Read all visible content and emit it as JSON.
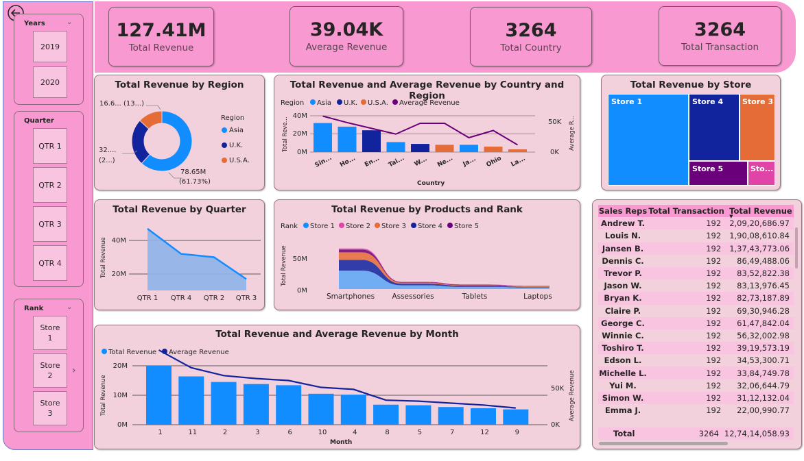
{
  "kpis": [
    {
      "value": "127.41M",
      "label": "Total Revenue"
    },
    {
      "value": "39.04K",
      "label": "Average Revenue"
    },
    {
      "value": "3264",
      "label": "Total Country"
    },
    {
      "value": "3264",
      "label": "Total Transaction"
    }
  ],
  "slicers": {
    "years": {
      "title": "Years",
      "items": [
        "2019",
        "2020"
      ]
    },
    "quarter": {
      "title": "Quarter",
      "items": [
        "QTR 1",
        "QTR 2",
        "QTR 3",
        "QTR 4"
      ]
    },
    "rank": {
      "title": "Rank",
      "items": [
        "Store 1",
        "Store 2",
        "Store 3"
      ]
    }
  },
  "colors": {
    "pink": "#f999d2",
    "card": "#f2d0dc",
    "asia": "#118dff",
    "uk": "#12239e",
    "usa": "#e66c37",
    "avg": "#6b007b",
    "store5": "#6b007b",
    "store6": "#e044a7"
  },
  "region_card": {
    "title": "Total Revenue by Region",
    "legend_title": "Region",
    "legend": [
      "Asia",
      "U.K.",
      "U.S.A."
    ],
    "labels": {
      "usa_label": "16.6... (13...)",
      "uk_label_1": "32....",
      "uk_label_2": "(2...)",
      "asia_label_1": "78.65M",
      "asia_label_2": "(61.73%)"
    }
  },
  "country_card": {
    "title": "Total Revenue and Average Revenue by Country and Region",
    "legend_title": "Region",
    "legend": [
      "Asia",
      "U.K.",
      "U.S.A.",
      "Average Revenue"
    ],
    "y_ticks": [
      "40M",
      "20M",
      "0M"
    ],
    "y2_ticks": [
      "50K",
      "0K"
    ],
    "ylabel": "Total Reve...",
    "y2label": "Average R...",
    "xlabel": "Country"
  },
  "store_card": {
    "title": "Total Revenue by Store",
    "tiles": [
      "Store 1",
      "Store 4",
      "Store 3",
      "Store 5",
      "Sto..."
    ]
  },
  "quarter_card": {
    "title": "Total Revenue by Quarter",
    "ylabel": "Total Revenue",
    "y_ticks": [
      "40M",
      "20M"
    ]
  },
  "products_card": {
    "title": "Total Revenue by Products and Rank",
    "legend_title": "Rank",
    "legend": [
      "Store 1",
      "Store 2",
      "Store 3",
      "Store 4",
      "Store 5"
    ],
    "ylabel": "Total Revenue",
    "y_ticks": [
      "50M",
      "0M"
    ]
  },
  "month_card": {
    "title": "Total Revenue and Average Revenue by Month",
    "legend": [
      "Total Revenue",
      "Average Revenue"
    ],
    "ylabel": "Total Revenue",
    "y2label": "Average Revenue",
    "xlabel": "Month",
    "y_ticks": [
      "20M",
      "10M",
      "0M"
    ],
    "y2_ticks": [
      "50K",
      "0K"
    ]
  },
  "chart_data": [
    {
      "type": "pie",
      "title": "Total Revenue by Region",
      "categories": [
        "Asia",
        "U.K.",
        "U.S.A."
      ],
      "values": [
        78.65,
        32.1,
        16.66
      ],
      "unit": "M"
    },
    {
      "type": "bar",
      "title": "Total Revenue and Average Revenue by Country and Region",
      "categories": [
        "Sin...",
        "Ho...",
        "En...",
        "Tai...",
        "W...",
        "Ne...",
        "Ja...",
        "Ohio",
        "La..."
      ],
      "series": [
        {
          "name": "Total Revenue",
          "values": [
            32,
            28,
            24,
            11,
            9,
            8,
            8,
            6,
            3
          ],
          "region": [
            "Asia",
            "Asia",
            "U.K.",
            "Asia",
            "U.K.",
            "U.S.A.",
            "Asia",
            "U.S.A.",
            "U.S.A."
          ]
        },
        {
          "name": "Average Revenue",
          "values": [
            50,
            41,
            33,
            25,
            40,
            40,
            20,
            30,
            10
          ],
          "axis": "secondary"
        }
      ],
      "xlabel": "Country",
      "ylim": [
        0,
        40
      ],
      "y2lim": [
        0,
        60
      ]
    },
    {
      "type": "heatmap",
      "title": "Total Revenue by Store",
      "categories": [
        "Store 1",
        "Store 4",
        "Store 3",
        "Store 5",
        "Sto..."
      ],
      "values": [
        42,
        24,
        17,
        9,
        4
      ]
    },
    {
      "type": "area",
      "title": "Total Revenue by Quarter",
      "categories": [
        "QTR 1",
        "QTR 4",
        "QTR 2",
        "QTR 3"
      ],
      "values": [
        47,
        32,
        30,
        17
      ],
      "ylabel": "Total Revenue",
      "ylim": [
        0,
        50
      ]
    },
    {
      "type": "area",
      "title": "Total Revenue by Products and Rank",
      "categories": [
        "Smartphones",
        "Assessories",
        "Tablets",
        "Laptops"
      ],
      "series": [
        {
          "name": "Store 1",
          "values": [
            34,
            7,
            4,
            3
          ]
        },
        {
          "name": "Store 4",
          "values": [
            20,
            3,
            2,
            1
          ]
        },
        {
          "name": "Store 3",
          "values": [
            14,
            2,
            1,
            1
          ]
        },
        {
          "name": "Store 5",
          "values": [
            5,
            1,
            1,
            0.5
          ]
        },
        {
          "name": "Store 2",
          "values": [
            2,
            0.5,
            0.5,
            0.5
          ]
        }
      ],
      "ylabel": "Total Revenue"
    },
    {
      "type": "bar",
      "title": "Total Revenue and Average Revenue by Month",
      "categories": [
        "1",
        "11",
        "2",
        "3",
        "6",
        "10",
        "4",
        "8",
        "5",
        "7",
        "12",
        "9"
      ],
      "series": [
        {
          "name": "Total Revenue",
          "values": [
            20,
            16.4,
            14.5,
            13.8,
            13.4,
            10.5,
            10.2,
            6.8,
            6.6,
            6.0,
            5.6,
            5.2
          ]
        },
        {
          "name": "Average Revenue",
          "values": [
            76,
            58,
            50,
            47,
            45,
            38,
            36,
            25,
            24,
            22,
            20,
            17
          ],
          "axis": "secondary"
        }
      ],
      "xlabel": "Month",
      "ylabel": "Total Revenue",
      "y2label": "Average Revenue",
      "ylim": [
        0,
        20
      ]
    },
    {
      "type": "table",
      "title": "Sales Reps",
      "columns": [
        "Sales Reps",
        "Total Transaction",
        "Total Revenue"
      ],
      "rows": [
        [
          "Andrew T.",
          "192",
          "2,09,20,686.97"
        ],
        [
          "Louis N.",
          "192",
          "1,90,08,610.84"
        ],
        [
          "Jansen B.",
          "192",
          "1,37,43,773.06"
        ],
        [
          "Dennis C.",
          "192",
          "86,49,488.06"
        ],
        [
          "Trevor P.",
          "192",
          "83,52,822.38"
        ],
        [
          "Jason W.",
          "192",
          "83,13,976.45"
        ],
        [
          "Bryan K.",
          "192",
          "82,73,187.89"
        ],
        [
          "Claire P.",
          "192",
          "69,30,946.28"
        ],
        [
          "George C.",
          "192",
          "61,47,842.04"
        ],
        [
          "Winnie C.",
          "192",
          "56,32,002.98"
        ],
        [
          "Toshiro T.",
          "192",
          "39,19,573.19"
        ],
        [
          "Edson L.",
          "192",
          "34,53,300.71"
        ],
        [
          "Michelle L.",
          "192",
          "33,84,749.78"
        ],
        [
          "Yui M.",
          "192",
          "32,06,644.79"
        ],
        [
          "Simon W.",
          "192",
          "31,12,132.04"
        ],
        [
          "Emma J.",
          "192",
          "22,00,990.77"
        ]
      ],
      "total": [
        "Total",
        "3264",
        "12,74,14,058.93"
      ]
    }
  ]
}
